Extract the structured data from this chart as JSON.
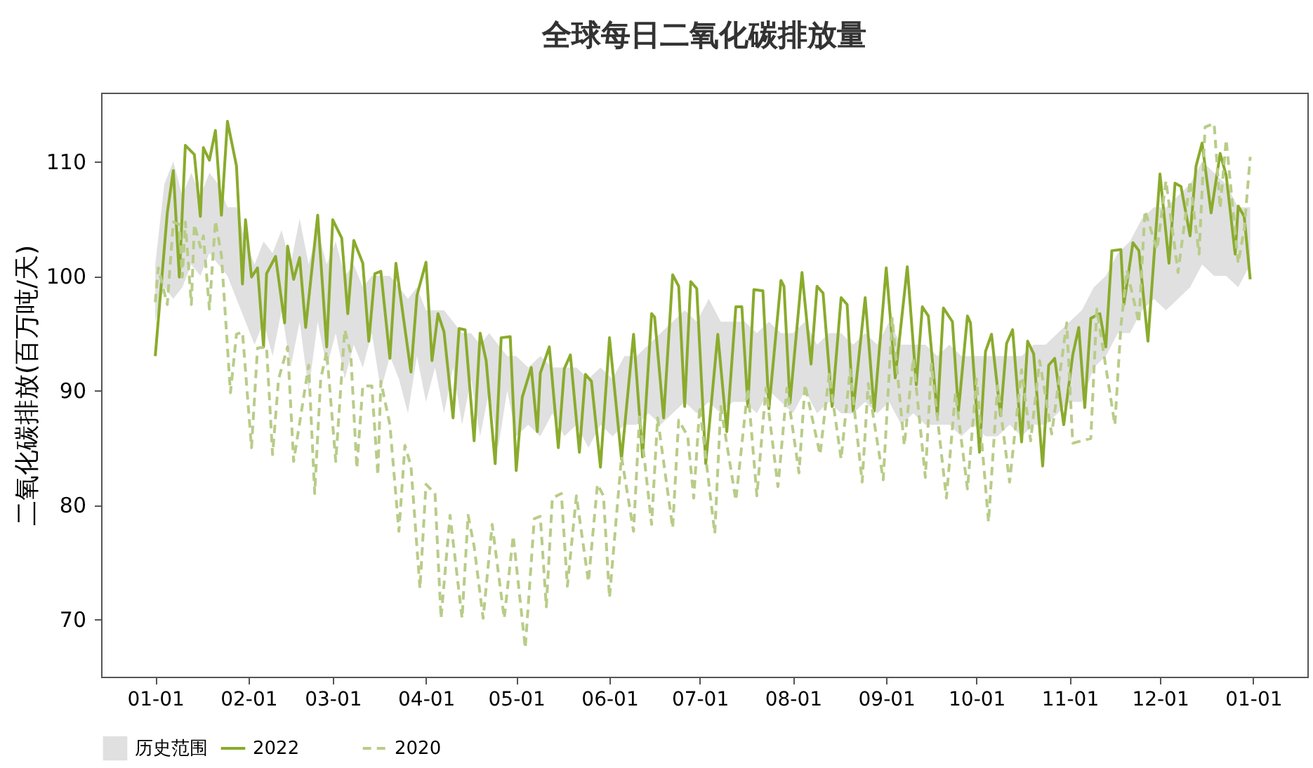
{
  "chart_data": {
    "type": "line",
    "title": "全球每日二氧化碳排放量",
    "ylabel": "二氧化碳排放(百万吨/天)",
    "xlim": [
      "2021-12-14",
      "2023-01-19"
    ],
    "xticks": [
      {
        "value": "2022-01-01",
        "label": "01-01"
      },
      {
        "value": "2022-02-01",
        "label": "02-01"
      },
      {
        "value": "2022-03-01",
        "label": "03-01"
      },
      {
        "value": "2022-04-01",
        "label": "04-01"
      },
      {
        "value": "2022-05-01",
        "label": "05-01"
      },
      {
        "value": "2022-06-01",
        "label": "06-01"
      },
      {
        "value": "2022-07-01",
        "label": "07-01"
      },
      {
        "value": "2022-08-01",
        "label": "08-01"
      },
      {
        "value": "2022-09-01",
        "label": "09-01"
      },
      {
        "value": "2022-10-01",
        "label": "10-01"
      },
      {
        "value": "2022-11-01",
        "label": "11-01"
      },
      {
        "value": "2022-12-01",
        "label": "12-01"
      },
      {
        "value": "2023-01-01",
        "label": "01-01"
      }
    ],
    "ylim": [
      65.0,
      116.0
    ],
    "yticks": [
      70,
      80,
      90,
      100,
      110
    ],
    "grid": false,
    "legend": "bottom",
    "series": [
      {
        "name": "历史范围",
        "type": "area",
        "color": "#e0e0e0",
        "x": [
          "2022-01-01",
          "2022-01-04",
          "2022-01-07",
          "2022-01-10",
          "2022-01-13",
          "2022-01-16",
          "2022-01-19",
          "2022-01-22",
          "2022-01-25",
          "2022-01-28",
          "2022-01-31",
          "2022-02-03",
          "2022-02-06",
          "2022-02-09",
          "2022-02-12",
          "2022-02-15",
          "2022-02-18",
          "2022-02-21",
          "2022-02-24",
          "2022-02-27",
          "2022-03-02",
          "2022-03-05",
          "2022-03-08",
          "2022-03-11",
          "2022-03-14",
          "2022-03-17",
          "2022-03-20",
          "2022-03-23",
          "2022-03-26",
          "2022-03-29",
          "2022-04-01",
          "2022-04-04",
          "2022-04-07",
          "2022-04-10",
          "2022-04-13",
          "2022-04-16",
          "2022-04-19",
          "2022-04-22",
          "2022-04-25",
          "2022-04-28",
          "2022-05-01",
          "2022-05-05",
          "2022-05-09",
          "2022-05-13",
          "2022-05-17",
          "2022-05-21",
          "2022-05-25",
          "2022-05-29",
          "2022-06-02",
          "2022-06-06",
          "2022-06-10",
          "2022-06-14",
          "2022-06-18",
          "2022-06-22",
          "2022-06-26",
          "2022-06-30",
          "2022-07-04",
          "2022-07-08",
          "2022-07-12",
          "2022-07-16",
          "2022-07-20",
          "2022-07-24",
          "2022-07-28",
          "2022-08-01",
          "2022-08-05",
          "2022-08-09",
          "2022-08-13",
          "2022-08-17",
          "2022-08-21",
          "2022-08-25",
          "2022-08-29",
          "2022-09-02",
          "2022-09-06",
          "2022-09-10",
          "2022-09-14",
          "2022-09-18",
          "2022-09-22",
          "2022-09-26",
          "2022-09-30",
          "2022-10-04",
          "2022-10-08",
          "2022-10-12",
          "2022-10-16",
          "2022-10-20",
          "2022-10-24",
          "2022-10-28",
          "2022-11-01",
          "2022-11-05",
          "2022-11-09",
          "2022-11-13",
          "2022-11-17",
          "2022-11-21",
          "2022-11-25",
          "2022-11-29",
          "2022-12-03",
          "2022-12-07",
          "2022-12-11",
          "2022-12-15",
          "2022-12-19",
          "2022-12-23",
          "2022-12-27",
          "2022-12-31"
        ],
        "values": [
          null,
          null,
          null,
          null,
          null,
          null,
          null,
          null,
          null,
          null,
          null,
          null,
          null,
          null,
          null,
          null,
          null,
          null,
          null,
          null,
          null,
          null,
          null,
          null,
          null,
          null,
          null,
          null,
          null,
          null,
          null,
          null,
          null,
          null,
          null,
          null,
          null,
          null,
          null,
          null,
          null,
          null,
          null,
          null,
          null,
          null,
          null,
          null,
          null,
          null,
          null,
          null,
          null,
          null,
          null,
          null,
          null,
          null,
          null,
          null,
          null,
          null,
          null,
          null,
          null,
          null,
          null,
          null,
          null,
          null,
          null,
          null,
          null,
          null,
          null,
          null,
          null,
          null,
          null,
          null,
          null,
          null,
          null,
          null,
          null,
          null,
          null,
          null,
          null,
          null,
          null,
          null,
          null,
          null,
          null,
          null,
          null,
          null,
          null,
          null,
          null,
          null
        ],
        "lower": [
          96,
          99,
          98,
          99,
          101,
          100,
          102,
          101,
          100,
          98,
          96,
          94,
          96,
          93,
          97,
          92,
          96,
          90,
          96,
          92,
          95,
          91,
          94,
          92,
          95,
          90,
          93,
          91,
          88,
          93,
          89,
          92,
          88,
          92,
          87,
          91,
          86,
          90,
          85,
          90,
          86,
          87,
          86,
          88,
          86,
          87,
          85,
          87,
          86,
          87,
          87,
          88,
          87,
          88,
          89,
          88,
          89,
          88,
          89,
          89,
          88,
          90,
          89,
          88,
          90,
          88,
          89,
          88,
          88,
          89,
          88,
          89,
          87,
          88,
          87,
          87,
          87,
          86,
          87,
          86,
          86,
          87,
          86,
          87,
          87,
          88,
          89,
          89,
          92,
          93,
          95,
          95,
          97,
          98,
          97,
          98,
          99,
          101,
          100,
          100,
          99,
          101
        ],
        "upper": [
          101,
          108,
          110,
          107,
          109,
          107,
          109,
          108,
          106,
          106,
          103,
          101,
          103,
          102,
          104,
          101,
          105,
          101,
          104,
          101,
          103,
          100,
          101,
          99,
          100,
          100,
          100,
          99,
          98,
          99,
          97,
          97,
          97,
          96,
          95,
          95,
          94,
          95,
          94,
          93,
          93,
          92,
          93,
          92,
          92,
          92,
          91,
          92,
          91,
          93,
          93,
          94,
          95,
          96,
          97,
          96,
          98,
          96,
          96,
          96,
          95,
          96,
          95,
          95,
          96,
          94,
          95,
          95,
          94,
          95,
          94,
          96,
          94,
          94,
          94,
          93,
          94,
          93,
          93,
          93,
          93,
          93,
          93,
          94,
          94,
          95,
          96,
          97,
          99,
          100,
          102,
          103,
          105,
          106,
          106,
          107,
          108,
          110,
          109,
          108,
          106,
          106
        ]
      },
      {
        "name": "2022",
        "color": "#8aab2d",
        "line_style": "solid",
        "x": [
          "2022-01-01",
          "2022-01-05",
          "2022-01-07",
          "2022-01-09",
          "2022-01-11",
          "2022-01-14",
          "2022-01-16",
          "2022-01-17",
          "2022-01-19",
          "2022-01-21",
          "2022-01-23",
          "2022-01-25",
          "2022-01-28",
          "2022-01-30",
          "2022-01-31",
          "2022-02-02",
          "2022-02-04",
          "2022-02-06",
          "2022-02-07",
          "2022-02-10",
          "2022-02-13",
          "2022-02-14",
          "2022-02-16",
          "2022-02-18",
          "2022-02-20",
          "2022-02-24",
          "2022-02-27",
          "2022-03-01",
          "2022-03-04",
          "2022-03-06",
          "2022-03-08",
          "2022-03-11",
          "2022-03-13",
          "2022-03-15",
          "2022-03-17",
          "2022-03-20",
          "2022-03-22",
          "2022-03-27",
          "2022-03-29",
          "2022-04-01",
          "2022-04-03",
          "2022-04-05",
          "2022-04-07",
          "2022-04-10",
          "2022-04-12",
          "2022-04-14",
          "2022-04-17",
          "2022-04-19",
          "2022-04-21",
          "2022-04-24",
          "2022-04-26",
          "2022-04-29",
          "2022-05-01",
          "2022-05-03",
          "2022-05-06",
          "2022-05-08",
          "2022-05-09",
          "2022-05-12",
          "2022-05-15",
          "2022-05-17",
          "2022-05-19",
          "2022-05-22",
          "2022-05-24",
          "2022-05-26",
          "2022-05-29",
          "2022-06-01",
          "2022-06-05",
          "2022-06-09",
          "2022-06-12",
          "2022-06-15",
          "2022-06-16",
          "2022-06-19",
          "2022-06-22",
          "2022-06-24",
          "2022-06-26",
          "2022-06-28",
          "2022-06-30",
          "2022-07-03",
          "2022-07-07",
          "2022-07-10",
          "2022-07-13",
          "2022-07-15",
          "2022-07-17",
          "2022-07-19",
          "2022-07-22",
          "2022-07-24",
          "2022-07-28",
          "2022-07-29",
          "2022-07-31",
          "2022-08-04",
          "2022-08-07",
          "2022-08-09",
          "2022-08-11",
          "2022-08-14",
          "2022-08-17",
          "2022-08-19",
          "2022-08-21",
          "2022-08-25",
          "2022-08-28",
          "2022-09-01",
          "2022-09-04",
          "2022-09-08",
          "2022-09-11",
          "2022-09-13",
          "2022-09-15",
          "2022-09-18",
          "2022-09-20",
          "2022-09-23",
          "2022-09-25",
          "2022-09-28",
          "2022-09-29",
          "2022-10-02",
          "2022-10-04",
          "2022-10-06",
          "2022-10-09",
          "2022-10-11",
          "2022-10-13",
          "2022-10-16",
          "2022-10-18",
          "2022-10-20",
          "2022-10-23",
          "2022-10-25",
          "2022-10-27",
          "2022-10-30",
          "2022-11-02",
          "2022-11-04",
          "2022-11-06",
          "2022-11-08",
          "2022-11-11",
          "2022-11-13",
          "2022-11-15",
          "2022-11-18",
          "2022-11-19",
          "2022-11-22",
          "2022-11-24",
          "2022-11-27",
          "2022-12-01",
          "2022-12-04",
          "2022-12-06",
          "2022-12-08",
          "2022-12-11",
          "2022-12-13",
          "2022-12-15",
          "2022-12-18",
          "2022-12-21",
          "2022-12-23",
          "2022-12-26",
          "2022-12-27",
          "2022-12-29",
          "2022-12-31"
        ],
        "values": [
          93.0,
          105.5,
          109.2,
          99.9,
          111.4,
          110.6,
          105.2,
          111.2,
          110.1,
          112.7,
          105.3,
          113.5,
          109.6,
          99.3,
          104.9,
          99.9,
          100.7,
          93.8,
          100.2,
          101.7,
          95.9,
          102.6,
          99.7,
          101.6,
          95.5,
          105.3,
          93.8,
          104.9,
          103.3,
          96.7,
          103.1,
          101.1,
          94.3,
          100.2,
          100.4,
          92.8,
          101.1,
          91.6,
          98.3,
          101.2,
          92.6,
          96.7,
          95.1,
          87.6,
          95.4,
          95.3,
          85.6,
          95.0,
          92.6,
          83.6,
          94.6,
          94.7,
          83.0,
          89.4,
          92.0,
          86.4,
          91.5,
          93.8,
          85.0,
          91.9,
          93.1,
          84.6,
          91.4,
          90.8,
          83.3,
          94.6,
          84.0,
          94.9,
          84.2,
          96.7,
          96.4,
          87.6,
          100.1,
          99.1,
          88.6,
          99.5,
          98.9,
          83.6,
          94.9,
          86.4,
          97.3,
          97.3,
          88.6,
          98.8,
          98.7,
          88.4,
          99.6,
          99.1,
          88.9,
          100.3,
          92.3,
          99.1,
          98.5,
          88.6,
          98.1,
          97.5,
          88.2,
          98.1,
          88.2,
          100.7,
          91.1,
          100.8,
          90.5,
          97.3,
          96.5,
          87.8,
          97.2,
          96.0,
          88.2,
          96.5,
          95.9,
          84.6,
          93.4,
          94.9,
          87.8,
          94.1,
          95.3,
          85.5,
          94.3,
          93.2,
          83.4,
          92.2,
          92.8,
          87.0,
          93.1,
          95.5,
          88.5,
          96.3,
          96.7,
          93.8,
          102.2,
          102.3,
          97.5,
          102.9,
          102.2,
          94.3,
          108.9,
          101.1,
          108.1,
          107.8,
          103.5,
          109.6,
          111.6,
          105.5,
          110.7,
          108.8,
          101.9,
          106.1,
          105.2,
          99.7
        ]
      },
      {
        "name": "2020",
        "color": "#b8cc88",
        "line_style": "dashed",
        "x": [
          "2022-01-01",
          "2022-01-02",
          "2022-01-05",
          "2022-01-07",
          "2022-01-09",
          "2022-01-10",
          "2022-01-11",
          "2022-01-13",
          "2022-01-14",
          "2022-01-16",
          "2022-01-17",
          "2022-01-19",
          "2022-01-21",
          "2022-01-23",
          "2022-01-26",
          "2022-01-28",
          "2022-01-30",
          "2022-02-02",
          "2022-02-04",
          "2022-02-07",
          "2022-02-09",
          "2022-02-11",
          "2022-02-14",
          "2022-02-16",
          "2022-02-21",
          "2022-02-23",
          "2022-02-25",
          "2022-02-27",
          "2022-03-02",
          "2022-03-05",
          "2022-03-07",
          "2022-03-09",
          "2022-03-11",
          "2022-03-14",
          "2022-03-16",
          "2022-03-17",
          "2022-03-20",
          "2022-03-23",
          "2022-03-25",
          "2022-03-27",
          "2022-03-30",
          "2022-04-01",
          "2022-04-04",
          "2022-04-06",
          "2022-04-09",
          "2022-04-13",
          "2022-04-15",
          "2022-04-17",
          "2022-04-20",
          "2022-04-23",
          "2022-04-27",
          "2022-04-30",
          "2022-05-04",
          "2022-05-07",
          "2022-05-09",
          "2022-05-11",
          "2022-05-13",
          "2022-05-16",
          "2022-05-18",
          "2022-05-21",
          "2022-05-25",
          "2022-05-28",
          "2022-05-30",
          "2022-06-01",
          "2022-06-05",
          "2022-06-09",
          "2022-06-11",
          "2022-06-15",
          "2022-06-17",
          "2022-06-22",
          "2022-06-24",
          "2022-06-27",
          "2022-06-29",
          "2022-07-01",
          "2022-07-06",
          "2022-07-08",
          "2022-07-13",
          "2022-07-17",
          "2022-07-20",
          "2022-07-23",
          "2022-07-27",
          "2022-07-30",
          "2022-08-03",
          "2022-08-05",
          "2022-08-10",
          "2022-08-13",
          "2022-08-17",
          "2022-08-20",
          "2022-08-24",
          "2022-08-26",
          "2022-08-31",
          "2022-09-03",
          "2022-09-07",
          "2022-09-10",
          "2022-09-14",
          "2022-09-16",
          "2022-09-21",
          "2022-09-24",
          "2022-09-28",
          "2022-10-01",
          "2022-10-05",
          "2022-10-08",
          "2022-10-12",
          "2022-10-16",
          "2022-10-19",
          "2022-10-22",
          "2022-10-26",
          "2022-10-31",
          "2022-11-02",
          "2022-11-08",
          "2022-11-10",
          "2022-11-16",
          "2022-11-18",
          "2022-11-20",
          "2022-11-24",
          "2022-11-26",
          "2022-11-30",
          "2022-12-03",
          "2022-12-07",
          "2022-12-11",
          "2022-12-14",
          "2022-12-16",
          "2022-12-19",
          "2022-12-21",
          "2022-12-23",
          "2022-12-27",
          "2022-12-29",
          "2022-12-31"
        ],
        "values": [
          97.7,
          100.7,
          97.5,
          104.7,
          104.5,
          99.9,
          104.7,
          97.5,
          104.5,
          102.5,
          103.5,
          97.1,
          104.8,
          101.8,
          89.8,
          94.9,
          95.1,
          85.0,
          93.7,
          93.8,
          84.4,
          91.0,
          93.8,
          83.8,
          92.2,
          81.0,
          91.0,
          93.4,
          83.8,
          95.3,
          93.2,
          83.2,
          90.4,
          90.4,
          82.6,
          90.8,
          87.0,
          77.7,
          85.2,
          83.4,
          72.7,
          81.8,
          81.0,
          70.1,
          79.1,
          70.1,
          79.1,
          76.4,
          70.1,
          78.3,
          70.1,
          77.3,
          67.5,
          78.8,
          79.0,
          71.1,
          80.6,
          81.0,
          72.9,
          80.8,
          73.3,
          81.8,
          80.8,
          71.9,
          84.2,
          77.7,
          87.8,
          78.3,
          87.6,
          78.0,
          87.4,
          86.0,
          80.6,
          88.6,
          77.5,
          88.6,
          80.4,
          90.2,
          80.8,
          90.2,
          81.6,
          90.2,
          82.8,
          90.5,
          84.4,
          91.4,
          84.0,
          91.8,
          82.0,
          90.6,
          82.2,
          96.3,
          85.2,
          92.8,
          82.4,
          92.3,
          80.6,
          89.8,
          81.4,
          91.0,
          78.5,
          90.4,
          82.0,
          91.8,
          85.6,
          92.6,
          86.2,
          95.9,
          85.4,
          85.8,
          97.1,
          87.0,
          95.6,
          100.5,
          95.9,
          105.7,
          102.3,
          108.3,
          100.3,
          108.3,
          101.9,
          113.0,
          113.3,
          105.9,
          111.9,
          101.1,
          104.1,
          110.4
        ]
      }
    ]
  }
}
